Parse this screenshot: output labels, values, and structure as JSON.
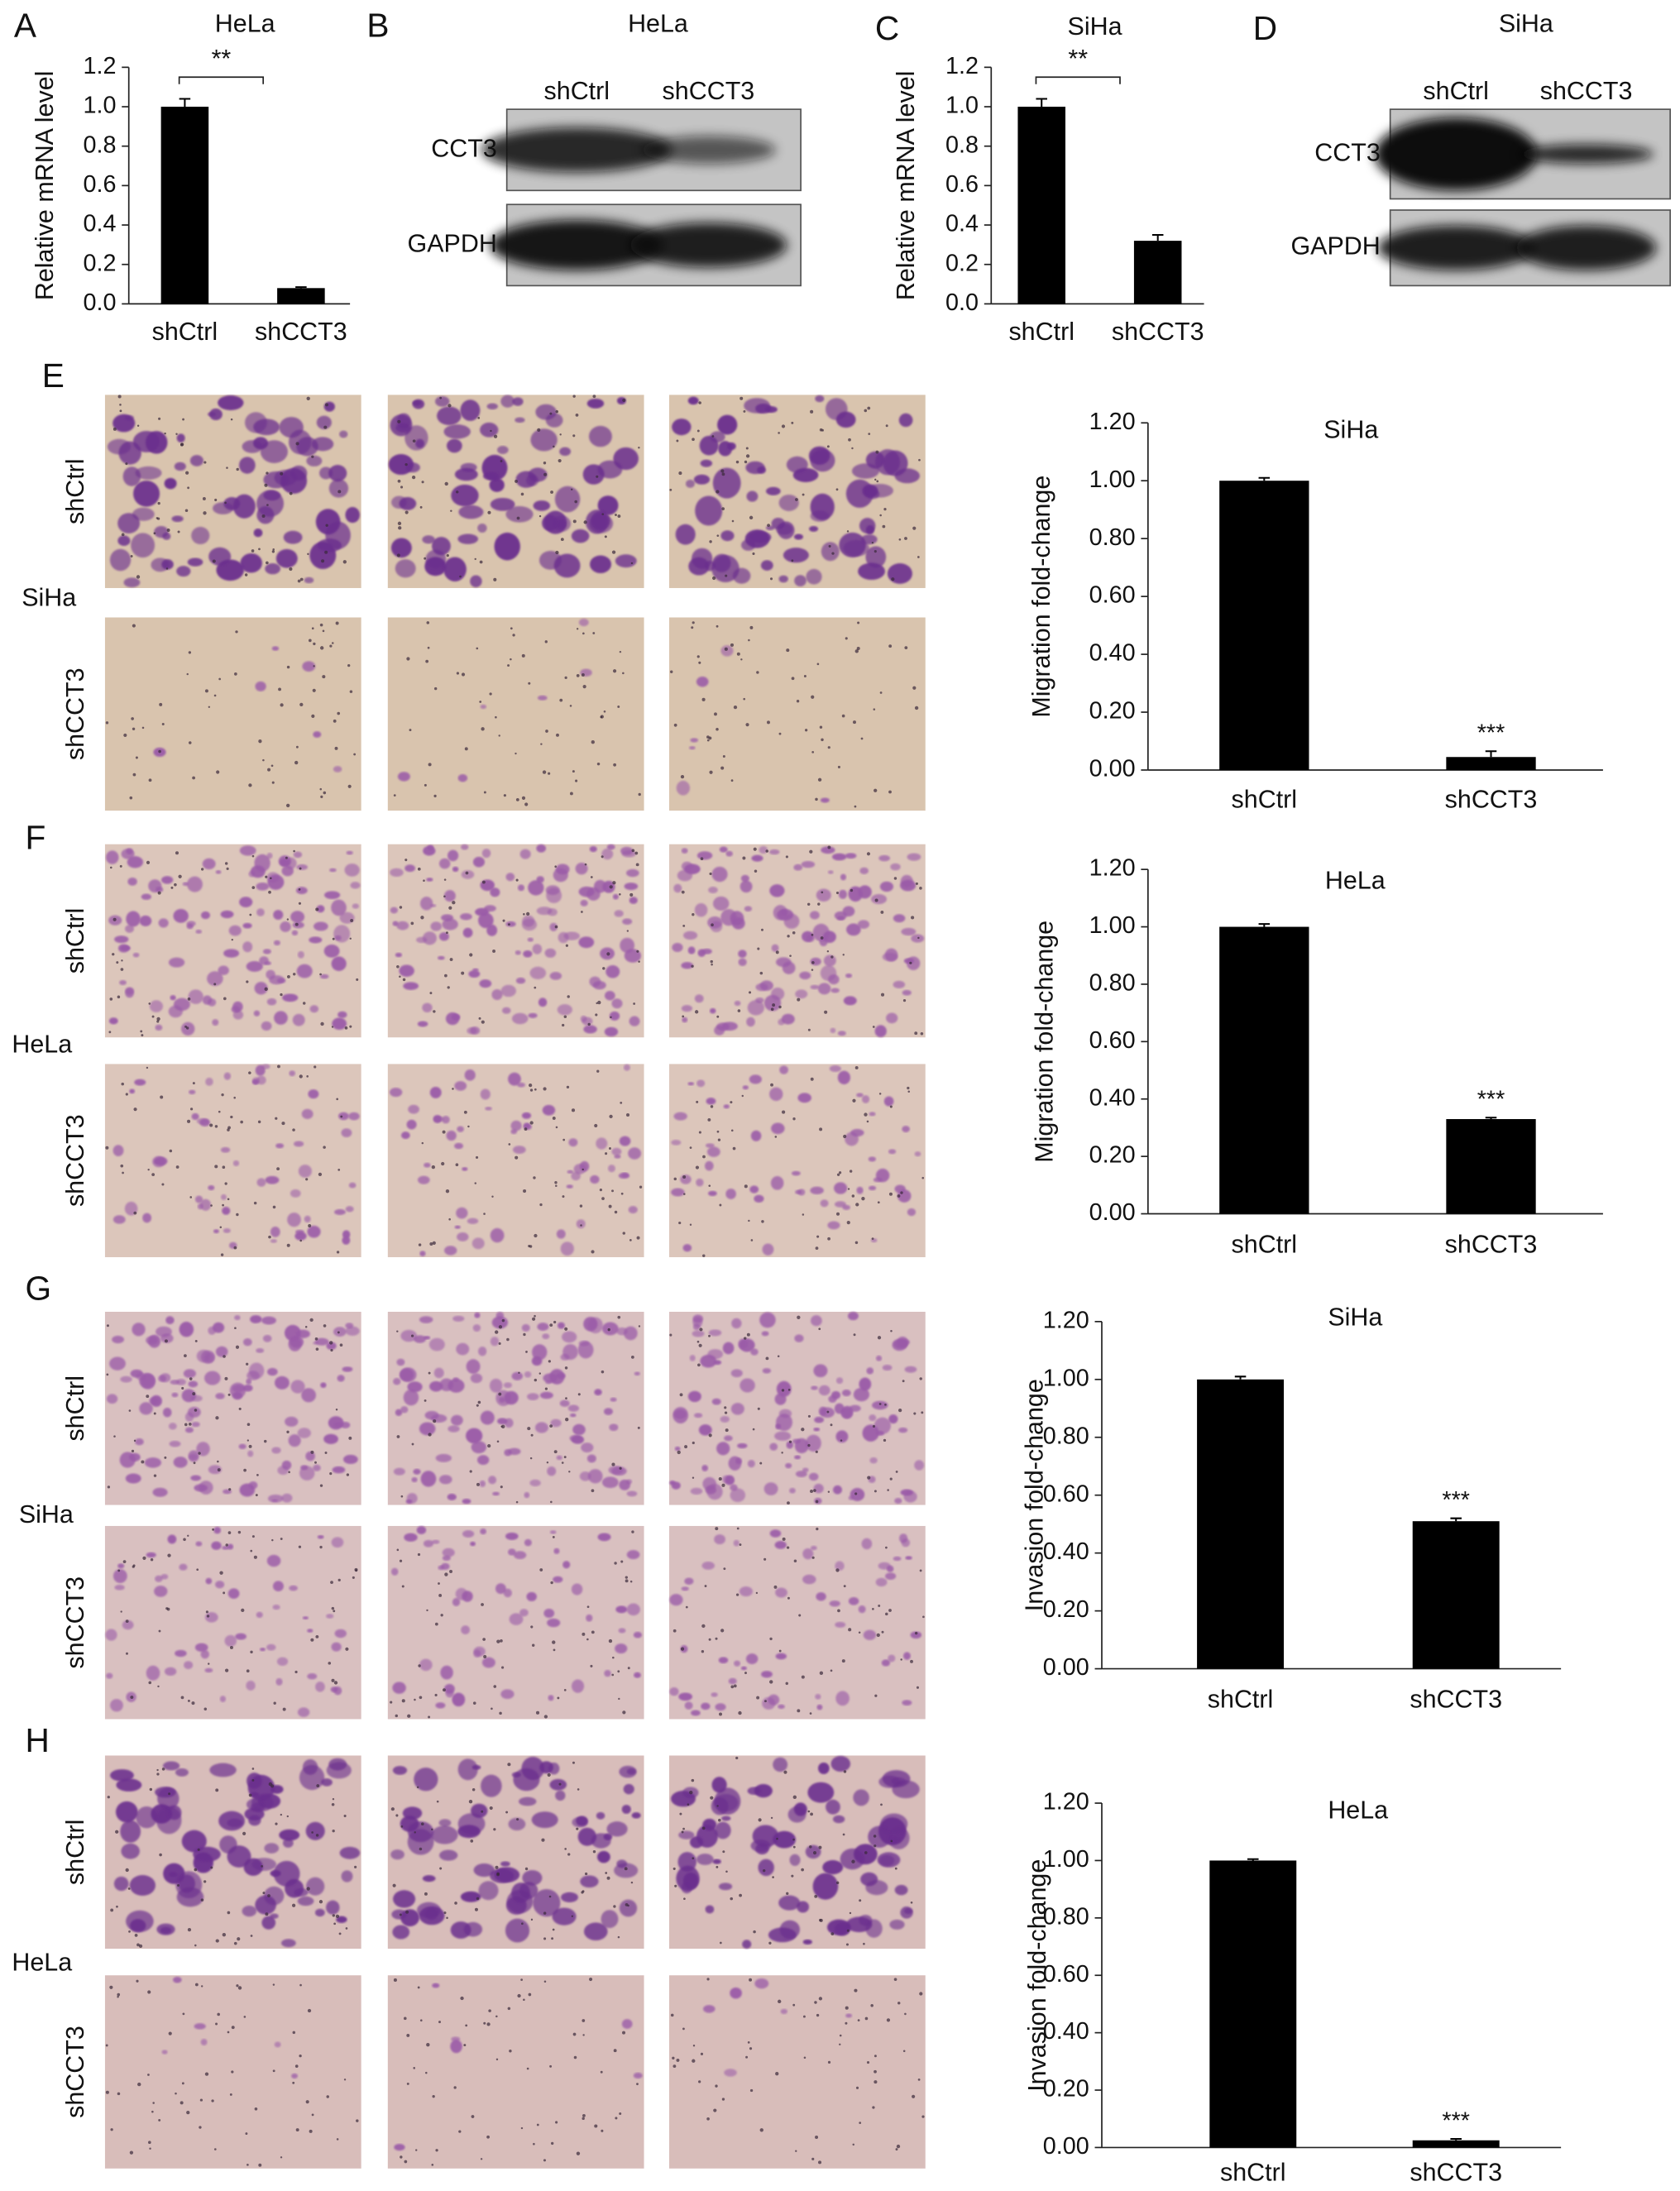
{
  "chart_data": [
    {
      "panel": "A",
      "type": "bar",
      "title": "HeLa",
      "ylabel": "Relative mRNA level",
      "categories": [
        "shCtrl",
        "shCCT3"
      ],
      "values": [
        1.0,
        0.08
      ],
      "errors": [
        0.04,
        0.005
      ],
      "color": "#000000",
      "ylim": [
        0,
        1.2
      ],
      "yticks": [
        {
          "value": 0,
          "label": "0.0"
        },
        0.2,
        0.4,
        0.6,
        0.8,
        {
          "value": 1,
          "label": "1.0"
        },
        1.2
      ],
      "significance_bracket": "**"
    },
    {
      "panel": "C",
      "type": "bar",
      "title": "SiHa",
      "ylabel": "Relative mRNA level",
      "categories": [
        "shCtrl",
        "shCCT3"
      ],
      "values": [
        1.0,
        0.32
      ],
      "errors": [
        0.04,
        0.03
      ],
      "color": "#000000",
      "ylim": [
        0,
        1.2
      ],
      "yticks": [
        {
          "value": 0,
          "label": "0.0"
        },
        0.2,
        0.4,
        0.6,
        0.8,
        {
          "value": 1,
          "label": "1.0"
        },
        1.2
      ],
      "significance_bracket": "**"
    },
    {
      "type": "bar",
      "title": "SiHa",
      "ylabel": "Migration fold-change",
      "categories": [
        "shCtrl",
        "shCCT3"
      ],
      "values": [
        1.0,
        0.045
      ],
      "errors": [
        0.01,
        0.02
      ],
      "color": "#000000",
      "ylim": [
        0,
        1.2
      ],
      "yticks": [
        {
          "value": 0,
          "label": "0.00"
        },
        {
          "value": 0.2,
          "label": "0.20"
        },
        {
          "value": 0.4,
          "label": "0.40"
        },
        {
          "value": 0.6,
          "label": "0.60"
        },
        {
          "value": 0.8,
          "label": "0.80"
        },
        {
          "value": 1,
          "label": "1.00"
        },
        {
          "value": 1.2,
          "label": "1.20"
        }
      ],
      "significance_label": "***"
    },
    {
      "type": "bar",
      "title": "HeLa",
      "ylabel": "Migration fold-change",
      "categories": [
        "shCtrl",
        "shCCT3"
      ],
      "values": [
        1.0,
        0.33
      ],
      "errors": [
        0.01,
        0.005
      ],
      "color": "#000000",
      "ylim": [
        0,
        1.2
      ],
      "yticks": [
        {
          "value": 0,
          "label": "0.00"
        },
        {
          "value": 0.2,
          "label": "0.20"
        },
        {
          "value": 0.4,
          "label": "0.40"
        },
        {
          "value": 0.6,
          "label": "0.60"
        },
        {
          "value": 0.8,
          "label": "0.80"
        },
        {
          "value": 1,
          "label": "1.00"
        },
        {
          "value": 1.2,
          "label": "1.20"
        }
      ],
      "significance_label": "***"
    },
    {
      "type": "bar",
      "title": "SiHa",
      "ylabel": "Invasion fold-change",
      "categories": [
        "shCtrl",
        "shCCT3"
      ],
      "values": [
        1.0,
        0.51
      ],
      "errors": [
        0.01,
        0.01
      ],
      "color": "#000000",
      "ylim": [
        0,
        1.2
      ],
      "yticks": [
        {
          "value": 0,
          "label": "0.00"
        },
        {
          "value": 0.2,
          "label": "0.20"
        },
        {
          "value": 0.4,
          "label": "0.40"
        },
        {
          "value": 0.6,
          "label": "0.60"
        },
        {
          "value": 0.8,
          "label": "0.80"
        },
        {
          "value": 1,
          "label": "1.00"
        },
        {
          "value": 1.2,
          "label": "1.20"
        }
      ],
      "significance_label": "***"
    },
    {
      "type": "bar",
      "title": "HeLa",
      "ylabel": "Invasion fold-change",
      "categories": [
        "shCtrl",
        "shCCT3"
      ],
      "values": [
        1.0,
        0.025
      ],
      "errors": [
        0.005,
        0.005
      ],
      "color": "#000000",
      "ylim": [
        0,
        1.2
      ],
      "yticks": [
        {
          "value": 0,
          "label": "0.00"
        },
        {
          "value": 0.2,
          "label": "0.20"
        },
        {
          "value": 0.4,
          "label": "0.40"
        },
        {
          "value": 0.6,
          "label": "0.60"
        },
        {
          "value": 0.8,
          "label": "0.80"
        },
        {
          "value": 1,
          "label": "1.00"
        },
        {
          "value": 1.2,
          "label": "1.20"
        }
      ],
      "significance_label": "***"
    }
  ],
  "blots": [
    {
      "panel": "B",
      "title": "HeLa",
      "lanes": [
        "shCtrl",
        "shCCT3"
      ],
      "rows": [
        "CCT3",
        "GAPDH"
      ]
    },
    {
      "panel": "D",
      "title": "SiHa",
      "lanes": [
        "shCtrl",
        "shCCT3"
      ],
      "rows": [
        "CCT3",
        "GAPDH"
      ]
    }
  ],
  "micrographs": [
    {
      "panel": "E",
      "cell_line": "SiHa",
      "rows": [
        "shCtrl",
        "shCCT3"
      ]
    },
    {
      "panel": "F",
      "cell_line": "HeLa",
      "rows": [
        "shCtrl",
        "shCCT3"
      ]
    },
    {
      "panel": "G",
      "cell_line": "SiHa",
      "rows": [
        "shCtrl",
        "shCCT3"
      ]
    },
    {
      "panel": "H",
      "cell_line": "HeLa",
      "rows": [
        "shCtrl",
        "shCCT3"
      ]
    }
  ]
}
